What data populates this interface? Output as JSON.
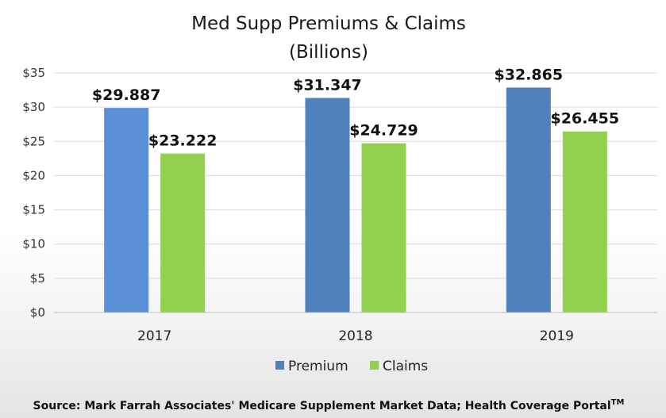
{
  "chart_data": {
    "type": "bar",
    "title": "Med Supp Premiums & Claims",
    "subtitle": "(Billions)",
    "categories": [
      "2017",
      "2018",
      "2019"
    ],
    "series": [
      {
        "name": "Premium",
        "values": [
          29.887,
          31.347,
          32.865
        ],
        "labels": [
          "$29.887",
          "$31.347",
          "$32.865"
        ],
        "colors": [
          "#5b8fd6",
          "#4f81bd",
          "#4f81bd"
        ]
      },
      {
        "name": "Claims",
        "values": [
          23.222,
          24.729,
          26.455
        ],
        "labels": [
          "$23.222",
          "$24.729",
          "$26.455"
        ],
        "colors": [
          "#92d050",
          "#92d050",
          "#92d050"
        ]
      }
    ],
    "yticks": [
      0,
      5,
      10,
      15,
      20,
      25,
      30,
      35
    ],
    "ytick_labels": [
      "$0",
      "$5",
      "$10",
      "$15",
      "$20",
      "$25",
      "$30",
      "$35"
    ],
    "ylim": [
      0,
      35
    ],
    "xlabel": "",
    "ylabel": "",
    "grid": true,
    "legend_position": "bottom",
    "legend": [
      {
        "name": "Premium",
        "color": "#4f81bd"
      },
      {
        "name": "Claims",
        "color": "#92d050"
      }
    ],
    "source_prefix": "Source:  Mark Farrah Associates' Medicare Supplement Market Data; Health Coverage Portal",
    "source_tm": "TM"
  }
}
